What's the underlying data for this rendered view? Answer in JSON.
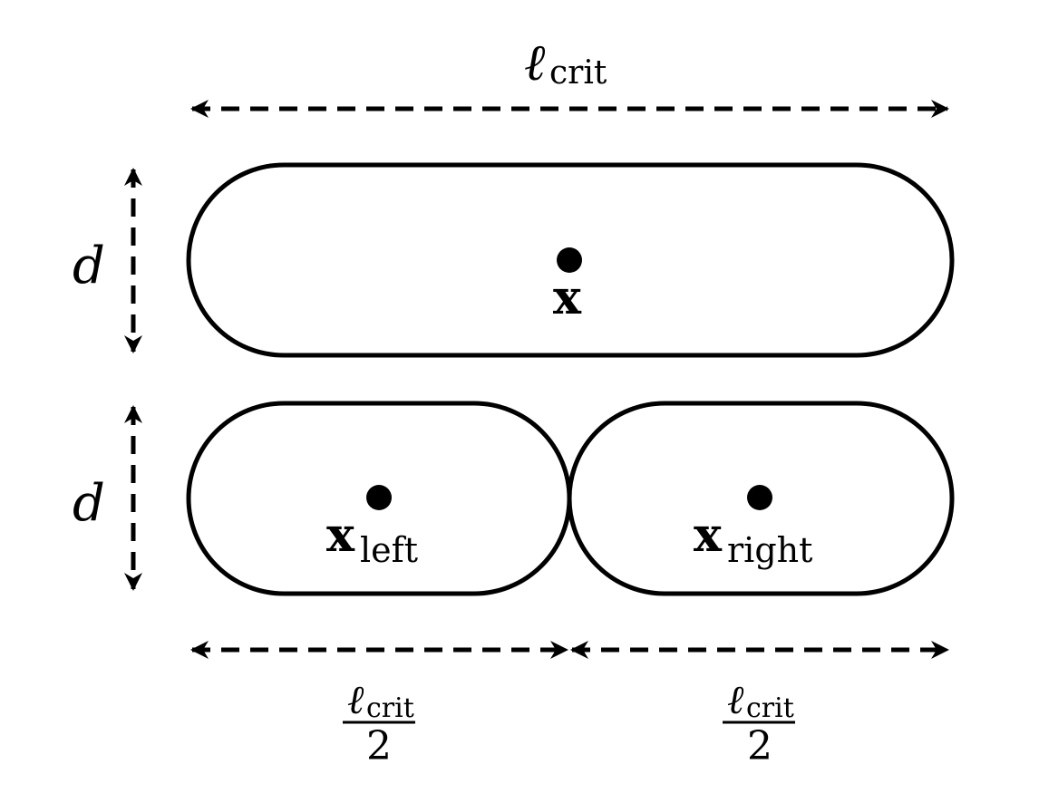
{
  "labels": {
    "ell": "ℓ",
    "crit": "crit",
    "half_denominator": "2",
    "d": "d",
    "x": "x",
    "left": "left",
    "right": "right"
  },
  "colors": {
    "stroke": "#000000",
    "background": "#ffffff"
  }
}
